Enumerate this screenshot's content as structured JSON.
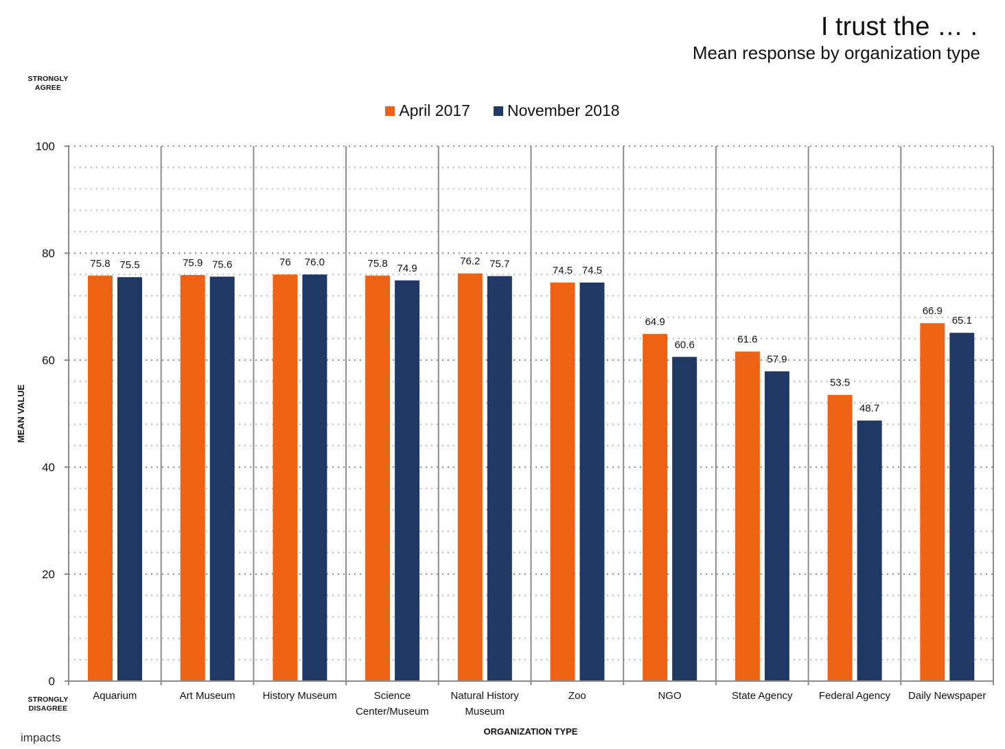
{
  "header": {
    "title": "I trust the … .",
    "subtitle": "Mean response by organization type"
  },
  "anchors": {
    "top": [
      "STRONGLY",
      "AGREE"
    ],
    "bottom": [
      "STRONGLY",
      "DISAGREE"
    ]
  },
  "footer": {
    "logo_text": "impacts"
  },
  "colors": {
    "april": "#EE6214",
    "november": "#1F3864",
    "axis": "#8C8C8C",
    "grid": "#B8B8B8"
  },
  "chart_data": {
    "type": "bar",
    "title": "I trust the … .",
    "subtitle": "Mean response by organization type",
    "xlabel": "ORGANIZATION TYPE",
    "ylabel": "MEAN VALUE",
    "ylim": [
      0,
      100
    ],
    "yticks": [
      0,
      20,
      40,
      60,
      80,
      100
    ],
    "minor_step": 4,
    "grid": true,
    "legend_position": "top-center",
    "categories": [
      [
        "Aquarium"
      ],
      [
        "Art Museum"
      ],
      [
        "History Museum"
      ],
      [
        "Science",
        "Center/Museum"
      ],
      [
        "Natural History",
        "Museum"
      ],
      [
        "Zoo"
      ],
      [
        "NGO"
      ],
      [
        "State Agency"
      ],
      [
        "Federal Agency"
      ],
      [
        "Daily Newspaper"
      ]
    ],
    "series": [
      {
        "name": "April 2017",
        "color": "#EE6214",
        "values": [
          75.8,
          75.9,
          76,
          75.8,
          76.2,
          74.5,
          64.9,
          61.6,
          53.5,
          66.9
        ],
        "labels": [
          "75.8",
          "75.9",
          "76",
          "75.8",
          "76.2",
          "74.5",
          "64.9",
          "61.6",
          "53.5",
          "66.9"
        ]
      },
      {
        "name": "November 2018",
        "color": "#1F3864",
        "values": [
          75.5,
          75.6,
          76.0,
          74.9,
          75.7,
          74.5,
          60.6,
          57.9,
          48.7,
          65.1
        ],
        "labels": [
          "75.5",
          "75.6",
          "76.0",
          "74.9",
          "75.7",
          "74.5",
          "60.6",
          "57.9",
          "48.7",
          "65.1"
        ]
      }
    ]
  }
}
